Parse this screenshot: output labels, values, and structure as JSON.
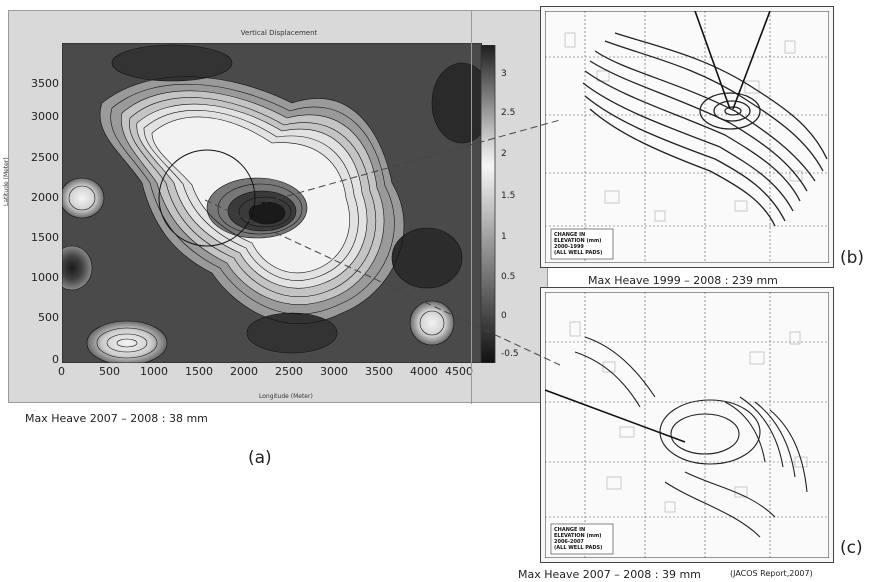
{
  "panel_a": {
    "plot_title": "Vertical Displacement",
    "y_axis_label": "Latitude (Meter)",
    "x_axis_label": "Longitude (Meter)",
    "y_ticks": [
      "3500",
      "3000",
      "2500",
      "2000",
      "1500",
      "1000",
      "500",
      "0"
    ],
    "x_ticks": [
      "0",
      "500",
      "1000",
      "1500",
      "2000",
      "2500",
      "3000",
      "3500",
      "4000",
      "4500"
    ],
    "colorbar_ticks": [
      "3",
      "2.5",
      "2",
      "1.5",
      "1",
      "0.5",
      "0",
      "-0.5"
    ],
    "caption": "Max Heave 2007 – 2008 : 38 mm",
    "label": "(a)"
  },
  "panel_b": {
    "note": [
      "CHANGE IN",
      "ELEVATION (mm)",
      "2000-1999",
      "(ALL WELL PADS)"
    ],
    "caption": "Max Heave 1999 – 2008 : 239 mm",
    "label": "(b)"
  },
  "panel_c": {
    "note": [
      "CHANGE IN",
      "ELEVATION (mm)",
      "2006-2007",
      "(ALL WELL PADS)"
    ],
    "caption": "Max Heave 2007 – 2008 : 39 mm",
    "source": "(JACOS Report,2007)",
    "label": "(c)"
  },
  "colors": {
    "frame": "#d9d9d9",
    "dark": "#2a2a2a",
    "light": "#f2f2f2"
  }
}
